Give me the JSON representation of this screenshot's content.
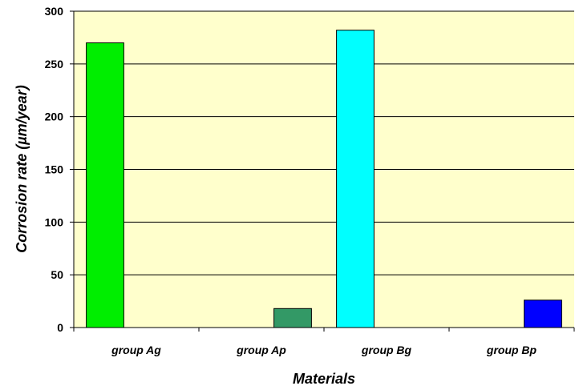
{
  "chart_data": {
    "type": "bar",
    "title": "",
    "xlabel": "Materials",
    "ylabel": "Corrosion rate (µm/year)",
    "categories": [
      "group Ag",
      "group Ap",
      "group Bg",
      "group Bp"
    ],
    "series": [
      {
        "values": [
          270,
          18,
          282,
          26
        ],
        "offsets": [
          0,
          1,
          0,
          1
        ],
        "colors": [
          "#00ee00",
          "#339966",
          "#00ffff",
          "#0000ff"
        ]
      }
    ],
    "ylim": [
      0,
      300
    ],
    "yticks": [
      "0",
      "50",
      "100",
      "150",
      "200",
      "250",
      "300"
    ],
    "grid": true,
    "plot_background": "#ffffcc",
    "grid_color": "#000000",
    "legend": "none"
  }
}
